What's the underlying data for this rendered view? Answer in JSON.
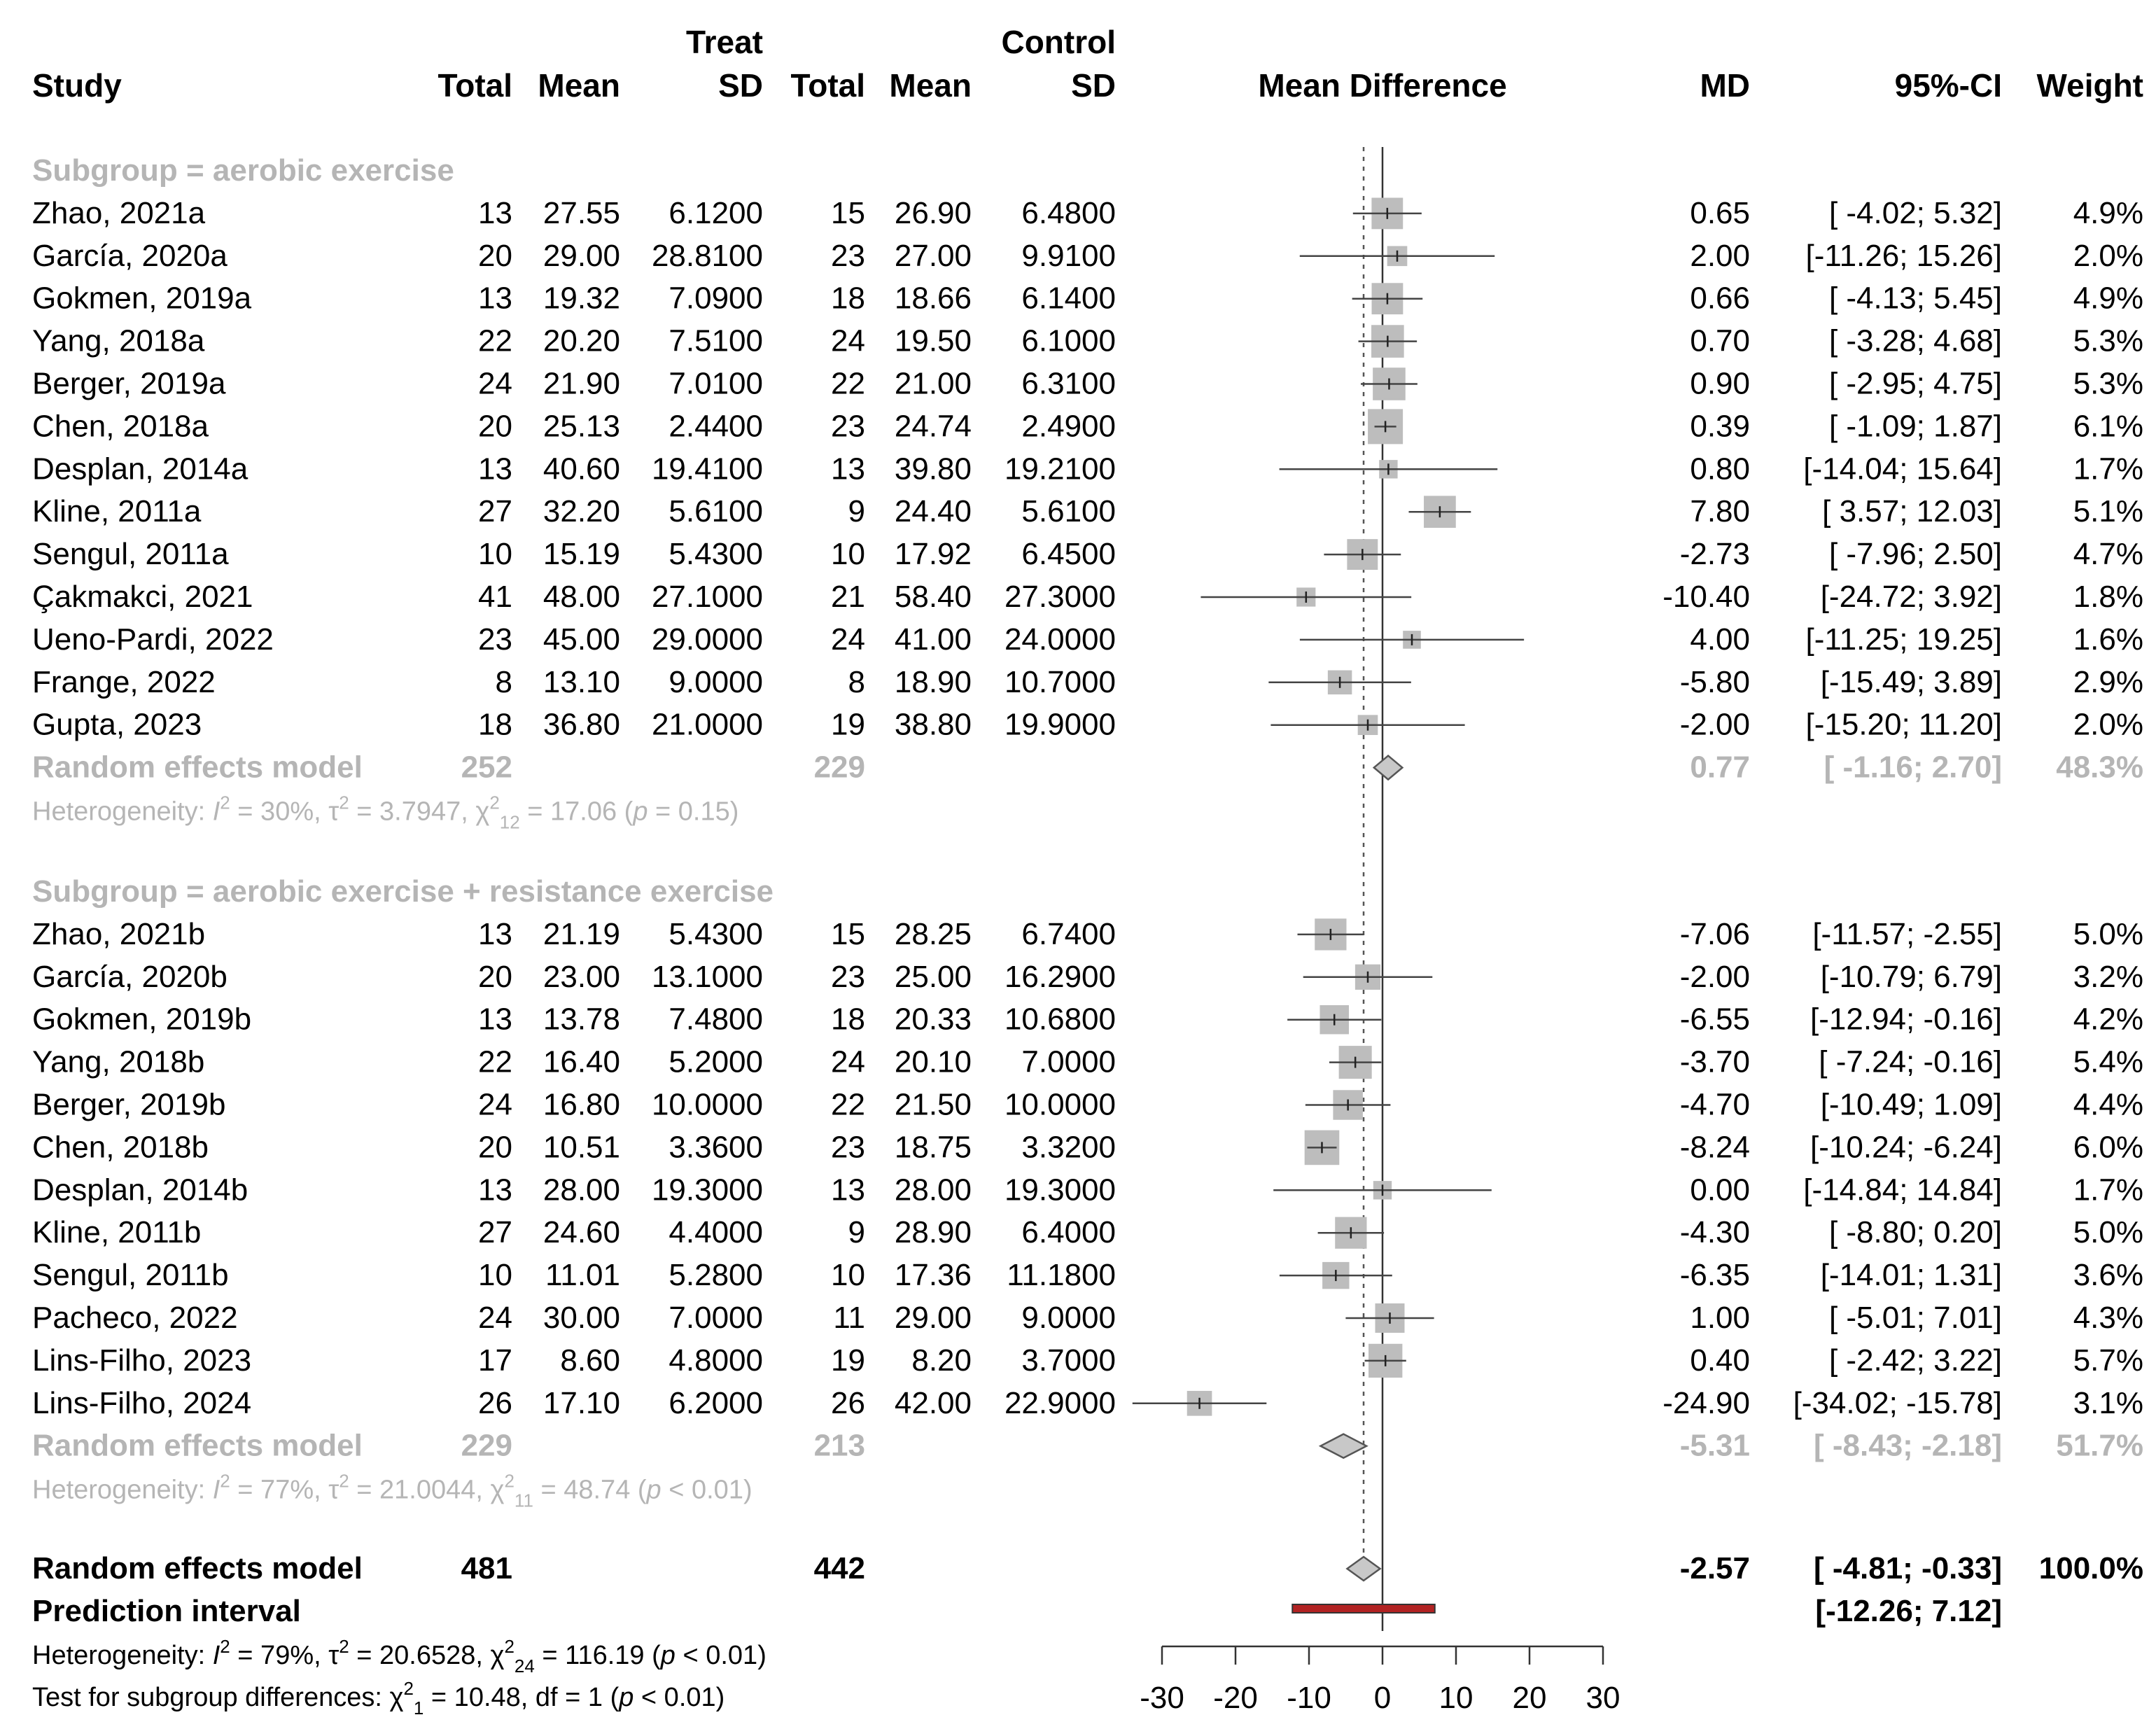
{
  "chart_data": {
    "type": "forest",
    "headers": {
      "study": "Study",
      "treat": "Treat",
      "control": "Control",
      "total": "Total",
      "mean": "Mean",
      "sd": "SD",
      "effect": "Mean Difference",
      "md": "MD",
      "ci": "95%-CI",
      "weight": "Weight"
    },
    "subgroups": [
      {
        "label": "Subgroup = aerobic exercise",
        "studies": [
          {
            "name": "Zhao, 2021a",
            "t_total": "13",
            "t_mean": "27.55",
            "t_sd": "6.1200",
            "c_total": "15",
            "c_mean": "26.90",
            "c_sd": "6.4800",
            "md": 0.65,
            "lo": -4.02,
            "hi": 5.32,
            "md_text": "0.65",
            "ci_text": "[ -4.02;  5.32]",
            "weight": "4.9%",
            "w": 4.9
          },
          {
            "name": "García, 2020a",
            "t_total": "20",
            "t_mean": "29.00",
            "t_sd": "28.8100",
            "c_total": "23",
            "c_mean": "27.00",
            "c_sd": "9.9100",
            "md": 2.0,
            "lo": -11.26,
            "hi": 15.26,
            "md_text": "2.00",
            "ci_text": "[-11.26; 15.26]",
            "weight": "2.0%",
            "w": 2.0
          },
          {
            "name": "Gokmen, 2019a",
            "t_total": "13",
            "t_mean": "19.32",
            "t_sd": "7.0900",
            "c_total": "18",
            "c_mean": "18.66",
            "c_sd": "6.1400",
            "md": 0.66,
            "lo": -4.13,
            "hi": 5.45,
            "md_text": "0.66",
            "ci_text": "[ -4.13;  5.45]",
            "weight": "4.9%",
            "w": 4.9
          },
          {
            "name": "Yang, 2018a",
            "t_total": "22",
            "t_mean": "20.20",
            "t_sd": "7.5100",
            "c_total": "24",
            "c_mean": "19.50",
            "c_sd": "6.1000",
            "md": 0.7,
            "lo": -3.28,
            "hi": 4.68,
            "md_text": "0.70",
            "ci_text": "[ -3.28;  4.68]",
            "weight": "5.3%",
            "w": 5.3
          },
          {
            "name": "Berger, 2019a",
            "t_total": "24",
            "t_mean": "21.90",
            "t_sd": "7.0100",
            "c_total": "22",
            "c_mean": "21.00",
            "c_sd": "6.3100",
            "md": 0.9,
            "lo": -2.95,
            "hi": 4.75,
            "md_text": "0.90",
            "ci_text": "[ -2.95;  4.75]",
            "weight": "5.3%",
            "w": 5.3
          },
          {
            "name": "Chen, 2018a",
            "t_total": "20",
            "t_mean": "25.13",
            "t_sd": "2.4400",
            "c_total": "23",
            "c_mean": "24.74",
            "c_sd": "2.4900",
            "md": 0.39,
            "lo": -1.09,
            "hi": 1.87,
            "md_text": "0.39",
            "ci_text": "[ -1.09;  1.87]",
            "weight": "6.1%",
            "w": 6.1
          },
          {
            "name": "Desplan, 2014a",
            "t_total": "13",
            "t_mean": "40.60",
            "t_sd": "19.4100",
            "c_total": "13",
            "c_mean": "39.80",
            "c_sd": "19.2100",
            "md": 0.8,
            "lo": -14.04,
            "hi": 15.64,
            "md_text": "0.80",
            "ci_text": "[-14.04; 15.64]",
            "weight": "1.7%",
            "w": 1.7
          },
          {
            "name": "Kline, 2011a",
            "t_total": "27",
            "t_mean": "32.20",
            "t_sd": "5.6100",
            "c_total": "9",
            "c_mean": "24.40",
            "c_sd": "5.6100",
            "md": 7.8,
            "lo": 3.57,
            "hi": 12.03,
            "md_text": "7.80",
            "ci_text": "[  3.57; 12.03]",
            "weight": "5.1%",
            "w": 5.1
          },
          {
            "name": "Sengul, 2011a",
            "t_total": "10",
            "t_mean": "15.19",
            "t_sd": "5.4300",
            "c_total": "10",
            "c_mean": "17.92",
            "c_sd": "6.4500",
            "md": -2.73,
            "lo": -7.96,
            "hi": 2.5,
            "md_text": "-2.73",
            "ci_text": "[ -7.96;  2.50]",
            "weight": "4.7%",
            "w": 4.7
          },
          {
            "name": "Çakmakci, 2021",
            "t_total": "41",
            "t_mean": "48.00",
            "t_sd": "27.1000",
            "c_total": "21",
            "c_mean": "58.40",
            "c_sd": "27.3000",
            "md": -10.4,
            "lo": -24.72,
            "hi": 3.92,
            "md_text": "-10.40",
            "ci_text": "[-24.72;  3.92]",
            "weight": "1.8%",
            "w": 1.8
          },
          {
            "name": "Ueno-Pardi, 2022",
            "t_total": "23",
            "t_mean": "45.00",
            "t_sd": "29.0000",
            "c_total": "24",
            "c_mean": "41.00",
            "c_sd": "24.0000",
            "md": 4.0,
            "lo": -11.25,
            "hi": 19.25,
            "md_text": "4.00",
            "ci_text": "[-11.25; 19.25]",
            "weight": "1.6%",
            "w": 1.6
          },
          {
            "name": "Frange, 2022",
            "t_total": "8",
            "t_mean": "13.10",
            "t_sd": "9.0000",
            "c_total": "8",
            "c_mean": "18.90",
            "c_sd": "10.7000",
            "md": -5.8,
            "lo": -15.49,
            "hi": 3.89,
            "md_text": "-5.80",
            "ci_text": "[-15.49;  3.89]",
            "weight": "2.9%",
            "w": 2.9
          },
          {
            "name": "Gupta, 2023",
            "t_total": "18",
            "t_mean": "36.80",
            "t_sd": "21.0000",
            "c_total": "19",
            "c_mean": "38.80",
            "c_sd": "19.9000",
            "md": -2.0,
            "lo": -15.2,
            "hi": 11.2,
            "md_text": "-2.00",
            "ci_text": "[-15.20; 11.20]",
            "weight": "2.0%",
            "w": 2.0
          }
        ],
        "pooled": {
          "label": "Random effects model",
          "t_total": "252",
          "c_total": "229",
          "md": 0.77,
          "lo": -1.16,
          "hi": 2.7,
          "md_text": "0.77",
          "ci_text": "[ -1.16;  2.70]",
          "weight": "48.3%"
        },
        "het": {
          "i2": "30%",
          "tau2": "3.7947",
          "df": "12",
          "chi2": "17.06",
          "p": "p = 0.15"
        }
      },
      {
        "label": "Subgroup = aerobic exercise + resistance exercise",
        "studies": [
          {
            "name": "Zhao, 2021b",
            "t_total": "13",
            "t_mean": "21.19",
            "t_sd": "5.4300",
            "c_total": "15",
            "c_mean": "28.25",
            "c_sd": "6.7400",
            "md": -7.06,
            "lo": -11.57,
            "hi": -2.55,
            "md_text": "-7.06",
            "ci_text": "[-11.57; -2.55]",
            "weight": "5.0%",
            "w": 5.0
          },
          {
            "name": "García, 2020b",
            "t_total": "20",
            "t_mean": "23.00",
            "t_sd": "13.1000",
            "c_total": "23",
            "c_mean": "25.00",
            "c_sd": "16.2900",
            "md": -2.0,
            "lo": -10.79,
            "hi": 6.79,
            "md_text": "-2.00",
            "ci_text": "[-10.79;  6.79]",
            "weight": "3.2%",
            "w": 3.2
          },
          {
            "name": "Gokmen, 2019b",
            "t_total": "13",
            "t_mean": "13.78",
            "t_sd": "7.4800",
            "c_total": "18",
            "c_mean": "20.33",
            "c_sd": "10.6800",
            "md": -6.55,
            "lo": -12.94,
            "hi": -0.16,
            "md_text": "-6.55",
            "ci_text": "[-12.94; -0.16]",
            "weight": "4.2%",
            "w": 4.2
          },
          {
            "name": "Yang, 2018b",
            "t_total": "22",
            "t_mean": "16.40",
            "t_sd": "5.2000",
            "c_total": "24",
            "c_mean": "20.10",
            "c_sd": "7.0000",
            "md": -3.7,
            "lo": -7.24,
            "hi": -0.16,
            "md_text": "-3.70",
            "ci_text": "[ -7.24; -0.16]",
            "weight": "5.4%",
            "w": 5.4
          },
          {
            "name": "Berger, 2019b",
            "t_total": "24",
            "t_mean": "16.80",
            "t_sd": "10.0000",
            "c_total": "22",
            "c_mean": "21.50",
            "c_sd": "10.0000",
            "md": -4.7,
            "lo": -10.49,
            "hi": 1.09,
            "md_text": "-4.70",
            "ci_text": "[-10.49;  1.09]",
            "weight": "4.4%",
            "w": 4.4
          },
          {
            "name": "Chen, 2018b",
            "t_total": "20",
            "t_mean": "10.51",
            "t_sd": "3.3600",
            "c_total": "23",
            "c_mean": "18.75",
            "c_sd": "3.3200",
            "md": -8.24,
            "lo": -10.24,
            "hi": -6.24,
            "md_text": "-8.24",
            "ci_text": "[-10.24; -6.24]",
            "weight": "6.0%",
            "w": 6.0
          },
          {
            "name": "Desplan, 2014b",
            "t_total": "13",
            "t_mean": "28.00",
            "t_sd": "19.3000",
            "c_total": "13",
            "c_mean": "28.00",
            "c_sd": "19.3000",
            "md": 0.0,
            "lo": -14.84,
            "hi": 14.84,
            "md_text": "0.00",
            "ci_text": "[-14.84; 14.84]",
            "weight": "1.7%",
            "w": 1.7
          },
          {
            "name": "Kline, 2011b",
            "t_total": "27",
            "t_mean": "24.60",
            "t_sd": "4.4000",
            "c_total": "9",
            "c_mean": "28.90",
            "c_sd": "6.4000",
            "md": -4.3,
            "lo": -8.8,
            "hi": 0.2,
            "md_text": "-4.30",
            "ci_text": "[ -8.80;  0.20]",
            "weight": "5.0%",
            "w": 5.0
          },
          {
            "name": "Sengul, 2011b",
            "t_total": "10",
            "t_mean": "11.01",
            "t_sd": "5.2800",
            "c_total": "10",
            "c_mean": "17.36",
            "c_sd": "11.1800",
            "md": -6.35,
            "lo": -14.01,
            "hi": 1.31,
            "md_text": "-6.35",
            "ci_text": "[-14.01;  1.31]",
            "weight": "3.6%",
            "w": 3.6
          },
          {
            "name": "Pacheco,  2022",
            "t_total": "24",
            "t_mean": "30.00",
            "t_sd": "7.0000",
            "c_total": "11",
            "c_mean": "29.00",
            "c_sd": "9.0000",
            "md": 1.0,
            "lo": -5.01,
            "hi": 7.01,
            "md_text": "1.00",
            "ci_text": "[ -5.01;  7.01]",
            "weight": "4.3%",
            "w": 4.3
          },
          {
            "name": "Lins-Filho, 2023",
            "t_total": "17",
            "t_mean": "8.60",
            "t_sd": "4.8000",
            "c_total": "19",
            "c_mean": "8.20",
            "c_sd": "3.7000",
            "md": 0.4,
            "lo": -2.42,
            "hi": 3.22,
            "md_text": "0.40",
            "ci_text": "[ -2.42;  3.22]",
            "weight": "5.7%",
            "w": 5.7
          },
          {
            "name": "Lins-Filho, 2024",
            "t_total": "26",
            "t_mean": "17.10",
            "t_sd": "6.2000",
            "c_total": "26",
            "c_mean": "42.00",
            "c_sd": "22.9000",
            "md": -24.9,
            "lo": -34.02,
            "hi": -15.78,
            "md_text": "-24.90",
            "ci_text": "[-34.02; -15.78]",
            "weight": "3.1%",
            "w": 3.1
          }
        ],
        "pooled": {
          "label": "Random effects model",
          "t_total": "229",
          "c_total": "213",
          "md": -5.31,
          "lo": -8.43,
          "hi": -2.18,
          "md_text": "-5.31",
          "ci_text": "[ -8.43; -2.18]",
          "weight": "51.7%"
        },
        "het": {
          "i2": "77%",
          "tau2": "21.0044",
          "df": "11",
          "chi2": "48.74",
          "p": "p < 0.01"
        }
      }
    ],
    "overall": {
      "label": "Random effects model",
      "t_total": "481",
      "c_total": "442",
      "md": -2.57,
      "lo": -4.81,
      "hi": -0.33,
      "md_text": "-2.57",
      "ci_text": "[ -4.81; -0.33]",
      "weight": "100.0%"
    },
    "prediction": {
      "label": "Prediction interval",
      "lo": -12.26,
      "hi": 7.12,
      "ci_text": "[-12.26;  7.12]"
    },
    "overall_het": {
      "i2": "79%",
      "tau2": "20.6528",
      "df": "24",
      "chi2": "116.19",
      "p": "p < 0.01"
    },
    "subgroup_test": {
      "df_sub": "1",
      "chi2": "10.48",
      "df": "1",
      "p": "p < 0.01"
    },
    "xlim": [
      -30,
      30
    ],
    "xticks": [
      -30,
      -20,
      -10,
      0,
      10,
      20,
      30
    ],
    "colors": {
      "square": "#bdbdbd",
      "diamond": "#c8c8c8",
      "prediction": "#b22222",
      "text_grey": "#b5b5b5"
    }
  }
}
